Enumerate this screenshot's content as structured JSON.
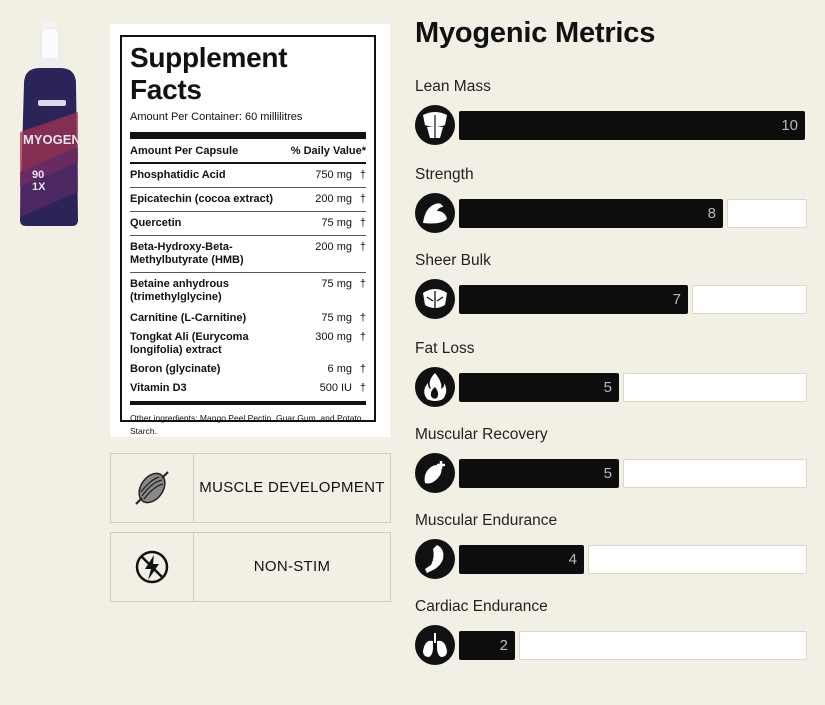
{
  "product": {
    "bottle_text": "MYOGEN",
    "bottle_small": "90",
    "bottle_small2": "1X"
  },
  "facts": {
    "title": "Supplement Facts",
    "amount_per_container": "Amount Per Container: 60 millilitres",
    "col_left": "Amount Per Capsule",
    "col_right": "% Daily Value*",
    "rows": [
      {
        "name": "Phosphatidic Acid",
        "amount": "750 mg",
        "dv": "†"
      },
      {
        "name": "Epicatechin (cocoa extract)",
        "amount": "200 mg",
        "dv": "†"
      },
      {
        "name": "Quercetin",
        "amount": "75 mg",
        "dv": "†"
      },
      {
        "name": "Beta-Hydroxy-Beta-Methylbutyrate (HMB)",
        "amount": "200 mg",
        "dv": "†"
      },
      {
        "name": "Betaine anhydrous (trimethylglycine)",
        "amount": "75 mg",
        "dv": "†"
      },
      {
        "name": "Carnitine (L-Carnitine)",
        "amount": "75 mg",
        "dv": "†"
      },
      {
        "name": "Tongkat Ali (Eurycoma longifolia) extract",
        "amount": "300 mg",
        "dv": "†"
      },
      {
        "name": "Boron (glycinate)",
        "amount": "6 mg",
        "dv": "†"
      },
      {
        "name": "Vitamin D3",
        "amount": "500 IU",
        "dv": "†"
      }
    ],
    "other": "Other ingredients: Mango Peel Pectin, Guar Gum, and Potato Starch."
  },
  "features": [
    {
      "label": "MUSCLE DEVELOPMENT",
      "icon": "muscle-fiber-icon"
    },
    {
      "label": "NON-STIM",
      "icon": "no-stimulant-icon"
    }
  ],
  "metrics": {
    "title": "Myogenic Metrics",
    "items": [
      {
        "label": "Lean Mass",
        "value": "10",
        "icon": "torso-icon"
      },
      {
        "label": "Strength",
        "value": "8",
        "icon": "flexed-arm-icon"
      },
      {
        "label": "Sheer Bulk",
        "value": "7",
        "icon": "back-muscles-icon"
      },
      {
        "label": "Fat Loss",
        "value": "5",
        "icon": "flame-icon"
      },
      {
        "label": "Muscular Recovery",
        "value": "5",
        "icon": "recovery-muscle-icon"
      },
      {
        "label": "Muscular Endurance",
        "value": "4",
        "icon": "leg-muscle-icon"
      },
      {
        "label": "Cardiac Endurance",
        "value": "2",
        "icon": "lungs-icon"
      }
    ],
    "max": 10
  },
  "colors": {
    "background": "#f2f0e4",
    "bar_fill": "#0d0d0d",
    "bar_empty": "#ffffff"
  }
}
